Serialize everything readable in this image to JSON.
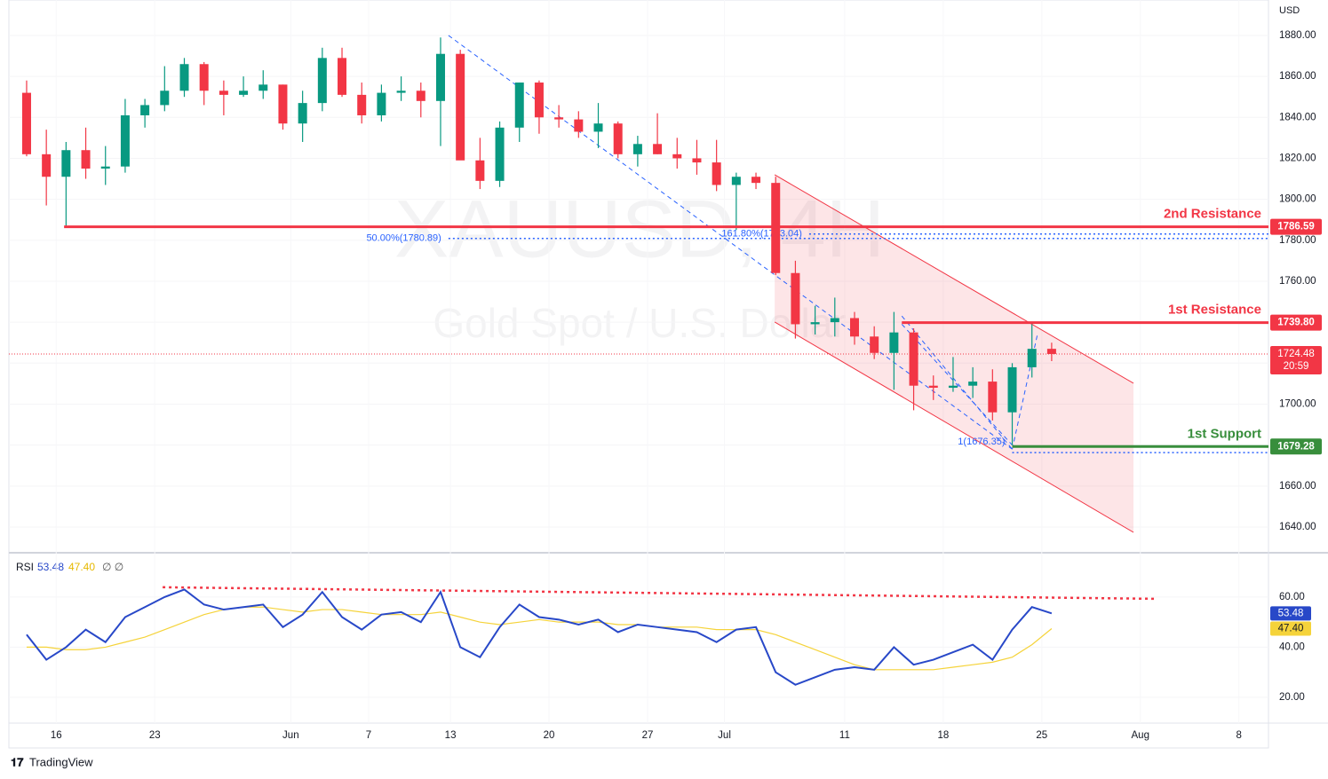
{
  "chart_data": {
    "type": "candlestick",
    "symbol_watermark": "XAUUSD, 4H",
    "name_watermark": "Gold Spot / U.S. Dollar",
    "currency": "USD",
    "brand": "TradingView",
    "up_color": "#089981",
    "down_color": "#f23645",
    "x": [
      0.9,
      1.9,
      2.9,
      3.9,
      4.9,
      5.9,
      6.9,
      7.9,
      8.9,
      9.9,
      10.9,
      11.9,
      12.9,
      13.9,
      14.9,
      15.9,
      16.9,
      17.9,
      18.9,
      19.9,
      20.9,
      21.9,
      22.9,
      23.9,
      24.9,
      25.9,
      26.9,
      27.9,
      28.9,
      29.9,
      30.9,
      31.9,
      32.9,
      33.9,
      34.9,
      35.9,
      36.9,
      37.9,
      38.9,
      39.9,
      40.9,
      41.9,
      42.9,
      43.9,
      44.9,
      45.9,
      46.9,
      47.9,
      48.9,
      49.9,
      50.9,
      51.9,
      52.9
    ],
    "ohlc": [
      [
        1852,
        1858,
        1821,
        1822
      ],
      [
        1822,
        1834,
        1797,
        1811
      ],
      [
        1811,
        1828,
        1787,
        1824
      ],
      [
        1824,
        1835,
        1810,
        1815
      ],
      [
        1815,
        1826,
        1807,
        1816
      ],
      [
        1816,
        1849,
        1813,
        1841
      ],
      [
        1841,
        1849,
        1835,
        1846
      ],
      [
        1846,
        1865,
        1843,
        1853
      ],
      [
        1853,
        1869,
        1850,
        1866
      ],
      [
        1866,
        1867,
        1846,
        1853
      ],
      [
        1853,
        1858,
        1841,
        1851
      ],
      [
        1851,
        1860,
        1850,
        1853
      ],
      [
        1853,
        1863,
        1849,
        1856
      ],
      [
        1856,
        1856,
        1834,
        1837
      ],
      [
        1837,
        1853,
        1828,
        1847
      ],
      [
        1847,
        1874,
        1843,
        1869
      ],
      [
        1869,
        1874,
        1850,
        1851
      ],
      [
        1851,
        1857,
        1837,
        1841
      ],
      [
        1841,
        1856,
        1838,
        1852
      ],
      [
        1852,
        1860,
        1848,
        1853
      ],
      [
        1853,
        1857,
        1840,
        1848
      ],
      [
        1848,
        1879,
        1826,
        1871
      ],
      [
        1871,
        1873,
        1821,
        1819
      ],
      [
        1819,
        1830,
        1805,
        1809
      ],
      [
        1809,
        1838,
        1806,
        1835
      ],
      [
        1835,
        1857,
        1828,
        1857
      ],
      [
        1857,
        1858,
        1832,
        1840
      ],
      [
        1840,
        1846,
        1835,
        1839
      ],
      [
        1839,
        1843,
        1830,
        1833
      ],
      [
        1833,
        1847,
        1825,
        1837
      ],
      [
        1837,
        1838,
        1820,
        1822
      ],
      [
        1822,
        1831,
        1816,
        1827
      ],
      [
        1827,
        1842,
        1822,
        1822
      ],
      [
        1822,
        1830,
        1815,
        1820
      ],
      [
        1820,
        1829,
        1812,
        1818
      ],
      [
        1818,
        1829,
        1804,
        1807
      ],
      [
        1807,
        1813,
        1785,
        1811
      ],
      [
        1811,
        1813,
        1805,
        1808
      ],
      [
        1808,
        1811,
        1763,
        1764
      ],
      [
        1764,
        1770,
        1732,
        1739
      ],
      [
        1739,
        1748,
        1734,
        1740
      ],
      [
        1740,
        1752,
        1733,
        1742
      ],
      [
        1742,
        1745,
        1729,
        1733
      ],
      [
        1733,
        1738,
        1722,
        1725
      ],
      [
        1725,
        1745,
        1707,
        1735
      ],
      [
        1735,
        1737,
        1697,
        1709
      ],
      [
        1709,
        1714,
        1702,
        1708
      ],
      [
        1708,
        1723,
        1706,
        1709
      ],
      [
        1709,
        1718,
        1703,
        1711
      ],
      [
        1711,
        1717,
        1692,
        1696
      ],
      [
        1696,
        1720,
        1680,
        1718
      ],
      [
        1718,
        1739,
        1713,
        1727
      ],
      [
        1727,
        1730,
        1721,
        1724.48
      ]
    ],
    "xlim": [
      0,
      63.9
    ],
    "xticks": [
      {
        "value": 2.4,
        "label": "16"
      },
      {
        "value": 7.4,
        "label": "23"
      },
      {
        "value": 14.3,
        "label": "Jun"
      },
      {
        "value": 18.25,
        "label": "7"
      },
      {
        "value": 22.4,
        "label": "13"
      },
      {
        "value": 27.4,
        "label": "20"
      },
      {
        "value": 32.4,
        "label": "27"
      },
      {
        "value": 36.3,
        "label": "Jul"
      },
      {
        "value": 42.4,
        "label": "11"
      },
      {
        "value": 47.4,
        "label": "18"
      },
      {
        "value": 52.4,
        "label": "25"
      },
      {
        "value": 57.4,
        "label": "Aug"
      },
      {
        "value": 62.4,
        "label": "8"
      }
    ],
    "ylim": [
      1629.6,
      1897.3
    ],
    "yticks": [
      {
        "value": 1640,
        "label": "1640.00"
      },
      {
        "value": 1660,
        "label": "1660.00"
      },
      {
        "value": 1680,
        "label": "1680.00"
      },
      {
        "value": 1700,
        "label": "1700.00"
      },
      {
        "value": 1720,
        "label": "1720.00"
      },
      {
        "value": 1740,
        "label": "1740.00"
      },
      {
        "value": 1760,
        "label": "1760.00"
      },
      {
        "value": 1780,
        "label": "1780.00"
      },
      {
        "value": 1800,
        "label": "1800.00"
      },
      {
        "value": 1820,
        "label": "1820.00"
      },
      {
        "value": 1840,
        "label": "1840.00"
      },
      {
        "value": 1860,
        "label": "1860.00"
      },
      {
        "value": 1880,
        "label": "1880.00"
      }
    ],
    "levels": [
      {
        "name": "2nd Resistance",
        "value": 1786.59,
        "label": "1786.59",
        "start": 2.8,
        "color": "#f23645"
      },
      {
        "name": "1st Resistance",
        "value": 1739.8,
        "label": "1739.80",
        "start": 45.3,
        "color": "#f23645"
      },
      {
        "name": "1st Support",
        "value": 1679.28,
        "label": "1679.28",
        "start": 50.9,
        "color": "#388e3c"
      }
    ],
    "fib_levels": [
      {
        "label": "50.00%(1780.89)",
        "value": 1780.89,
        "start": 22.3
      },
      {
        "label": "161.80%(1783.04)",
        "value": 1783.04,
        "start": 40.6
      },
      {
        "label": "1(1676.35)",
        "value": 1676.35,
        "start": 50.9
      }
    ],
    "last_price": {
      "value": 1724.48,
      "label": "1724.48",
      "countdown": "20:59"
    },
    "channel": {
      "upper": [
        [
          38.85,
          1811.98
        ],
        [
          57.05,
          1710.2
        ]
      ],
      "lower": [
        [
          38.85,
          1740.07
        ],
        [
          57.05,
          1637.4
        ]
      ]
    },
    "trend_lines": [
      {
        "points": [
          [
            22.3,
            1880
          ],
          [
            50.9,
            1678
          ]
        ]
      },
      {
        "points": [
          [
            45.3,
            1743
          ],
          [
            50.9,
            1678
          ]
        ]
      },
      {
        "points": [
          [
            45.3,
            1739
          ],
          [
            50.9,
            1680
          ]
        ]
      },
      {
        "points": [
          [
            50.9,
            1678
          ],
          [
            52.2,
            1735
          ]
        ]
      }
    ],
    "rsi": {
      "title": "RSI",
      "color": "#2848c8",
      "ma_color": "#f5d33a",
      "ylim": [
        9.7,
        75.9
      ],
      "yticks": [
        {
          "value": 20,
          "label": "20.00"
        },
        {
          "value": 40,
          "label": "40.00"
        },
        {
          "value": 60,
          "label": "60.00"
        }
      ],
      "values": [
        45,
        35,
        40,
        47,
        42,
        52,
        56,
        60,
        63,
        57,
        55,
        56,
        57,
        48,
        53,
        62,
        52,
        47,
        53,
        54,
        50,
        62,
        40,
        36,
        48,
        57,
        52,
        51,
        49,
        51,
        46,
        49,
        48,
        47,
        46,
        42,
        47,
        48,
        30,
        25,
        28,
        31,
        32,
        31,
        40,
        33,
        35,
        38,
        41,
        35,
        47,
        56,
        53.48
      ],
      "ma": [
        40,
        40,
        39,
        39,
        40,
        42,
        44,
        47,
        50,
        53,
        55,
        56,
        56,
        55,
        54,
        55,
        55,
        54,
        53,
        53,
        53,
        54,
        52,
        50,
        49,
        50,
        51,
        50,
        50,
        50,
        49,
        49,
        48,
        48,
        48,
        47,
        47,
        47,
        45,
        42,
        39,
        36,
        33,
        31,
        31,
        31,
        31,
        32,
        33,
        34,
        36,
        41,
        47.4
      ],
      "value_label": "53.48",
      "ma_label": "47.40",
      "extra": "∅ ∅",
      "resistance": [
        [
          7.8,
          63.9
        ],
        [
          58.1,
          59.3
        ]
      ]
    }
  }
}
